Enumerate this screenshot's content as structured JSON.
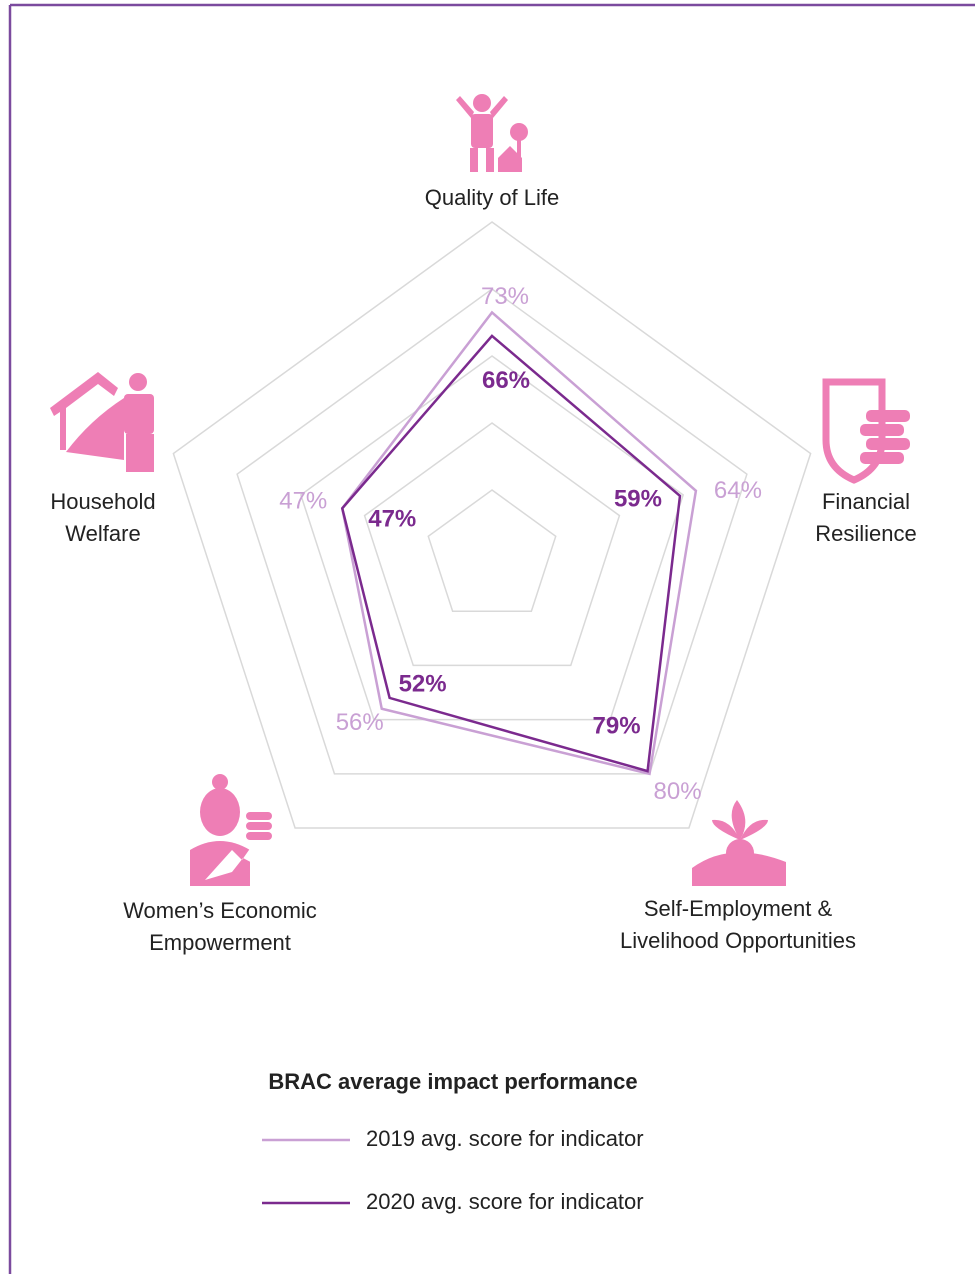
{
  "chart_data": {
    "type": "radar",
    "categories": [
      "Quality of Life",
      "Financial\nResilience",
      "Self-Employment &\nLivelihood Opportunities",
      "Women’s Economic\nEmpowerment",
      "Household\nWelfare"
    ],
    "series": [
      {
        "name": "2019 avg. score for indicator",
        "color": "#c9a0d4",
        "values": [
          73,
          64,
          80,
          56,
          47
        ],
        "value_labels": [
          "73%",
          "64%",
          "80%",
          "56%",
          "47%"
        ]
      },
      {
        "name": "2020 avg. score for indicator",
        "color": "#7b2a8e",
        "values": [
          66,
          59,
          79,
          52,
          47
        ],
        "value_labels": [
          "66%",
          "59%",
          "79%",
          "52%",
          "47%"
        ]
      }
    ],
    "rlim": [
      0,
      100
    ],
    "rticks": [
      20,
      40,
      60,
      80,
      100
    ],
    "grid": true,
    "legend_title": "BRAC average impact performance",
    "legend": "bottom"
  }
}
